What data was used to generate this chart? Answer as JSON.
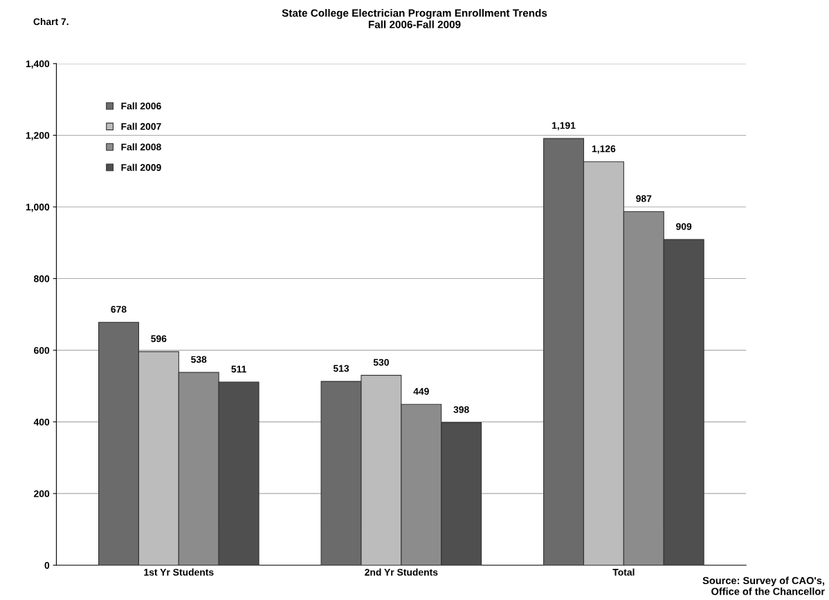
{
  "chart_data": {
    "type": "bar",
    "title": "State College Electrician Program Enrollment Trends\nFall 2006-Fall 2009",
    "categories": [
      "1st Yr Students",
      "2nd Yr Students",
      "Total"
    ],
    "series": [
      {
        "name": "Fall 2006",
        "color": "#6b6b6b",
        "values": [
          678,
          513,
          1191
        ],
        "value_labels": [
          "678",
          "513",
          "1,191"
        ]
      },
      {
        "name": "Fall 2007",
        "color": "#bcbcbc",
        "values": [
          596,
          530,
          1126
        ],
        "value_labels": [
          "596",
          "530",
          "1,126"
        ]
      },
      {
        "name": "Fall 2008",
        "color": "#8c8c8c",
        "values": [
          538,
          449,
          987
        ],
        "value_labels": [
          "538",
          "449",
          "987"
        ]
      },
      {
        "name": "Fall 2009",
        "color": "#4f4f4f",
        "values": [
          511,
          398,
          909
        ],
        "value_labels": [
          "511",
          "398",
          "909"
        ]
      }
    ],
    "ylim": [
      0,
      1400
    ],
    "yticks": [
      0,
      {
        "value": 200,
        "label": "200"
      },
      {
        "value": 400,
        "label": "400"
      },
      {
        "value": 600,
        "label": "600"
      },
      {
        "value": 800,
        "label": "800"
      },
      {
        "value": 1000,
        "label": "1,000"
      },
      {
        "value": 1200,
        "label": "1,200"
      },
      {
        "value": 1400,
        "label": "1,400"
      }
    ],
    "grid": "y",
    "legend": "top left",
    "annotations": [
      "Chart 7.",
      "Source: Survey of CAO's,\nOffice of the Chancellor"
    ]
  }
}
